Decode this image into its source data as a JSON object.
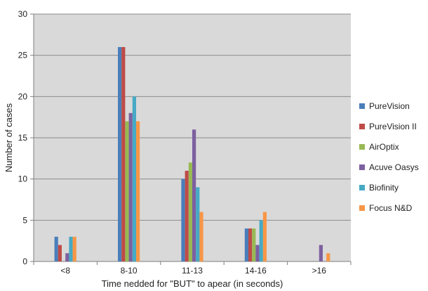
{
  "chart_data": {
    "type": "bar",
    "title": "",
    "xlabel": "Time nedded for \"BUT\" to apear (in seconds)",
    "ylabel": "Number of cases",
    "ylim": [
      0,
      30
    ],
    "yticks": [
      0,
      5,
      10,
      15,
      20,
      25,
      30
    ],
    "categories": [
      "<8",
      "8-10",
      "11-13",
      "14-16",
      ">16"
    ],
    "grid": true,
    "legend_position": "right",
    "plot_background": "#d9d9d9",
    "series": [
      {
        "name": "PureVision",
        "color": "#4a7ebb",
        "values": [
          3,
          26,
          10,
          4,
          0
        ]
      },
      {
        "name": "PureVision II",
        "color": "#be4b48",
        "values": [
          2,
          26,
          11,
          4,
          0
        ]
      },
      {
        "name": "AirOptix",
        "color": "#98b954",
        "values": [
          0,
          17,
          12,
          4,
          0
        ]
      },
      {
        "name": "Acuve Oasys",
        "color": "#7d60a0",
        "values": [
          1,
          18,
          16,
          2,
          2
        ]
      },
      {
        "name": "Biofinity",
        "color": "#46aac5",
        "values": [
          3,
          20,
          9,
          5,
          0
        ]
      },
      {
        "name": "Focus N&D",
        "color": "#f79646",
        "values": [
          3,
          17,
          6,
          6,
          1
        ]
      }
    ]
  }
}
